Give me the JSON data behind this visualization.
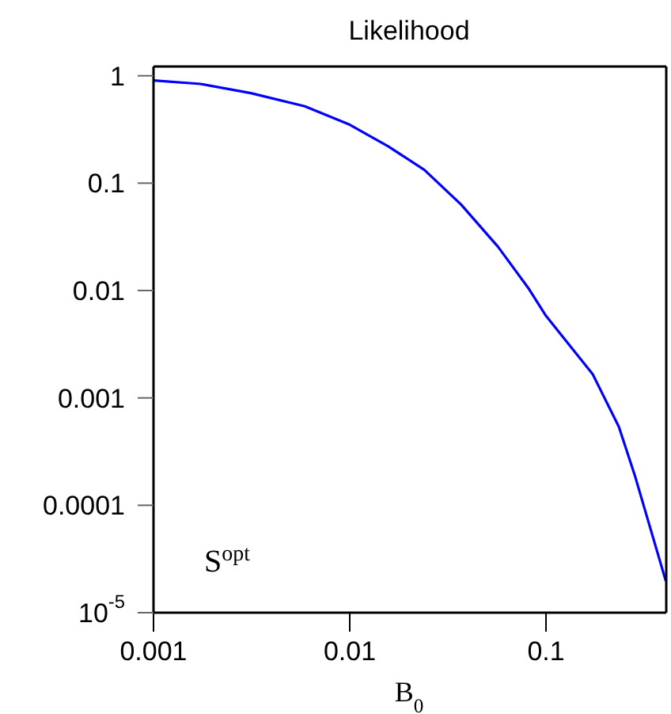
{
  "chart_data": {
    "type": "line",
    "title": "Likelihood",
    "xlabel": "B$_{0}$",
    "annotations": [
      "S$^{opt}$"
    ],
    "log": "xy",
    "marker": "none",
    "line_style": "solid",
    "xlim": [
      0.001,
      0.41
    ],
    "ylim": [
      1e-05,
      1.22
    ],
    "xticks": [
      0.001,
      0.01,
      0.1
    ],
    "yticks": [
      {
        "value": 1e-05,
        "label": "10$^{-5}$"
      },
      0.0001,
      0.001,
      0.01,
      0.1,
      1
    ],
    "series": [
      {
        "color": "#0000ff",
        "x": [
          0.001,
          0.00173,
          0.00313,
          0.0059,
          0.01,
          0.0157,
          0.024,
          0.037,
          0.057,
          0.082,
          0.1,
          0.173,
          0.235,
          0.283,
          0.408
        ],
        "values": [
          0.906,
          0.84,
          0.69,
          0.52,
          0.35,
          0.22,
          0.133,
          0.063,
          0.0255,
          0.0103,
          0.0058,
          0.00166,
          0.00054,
          0.000192,
          1.97e-05
        ]
      }
    ]
  }
}
